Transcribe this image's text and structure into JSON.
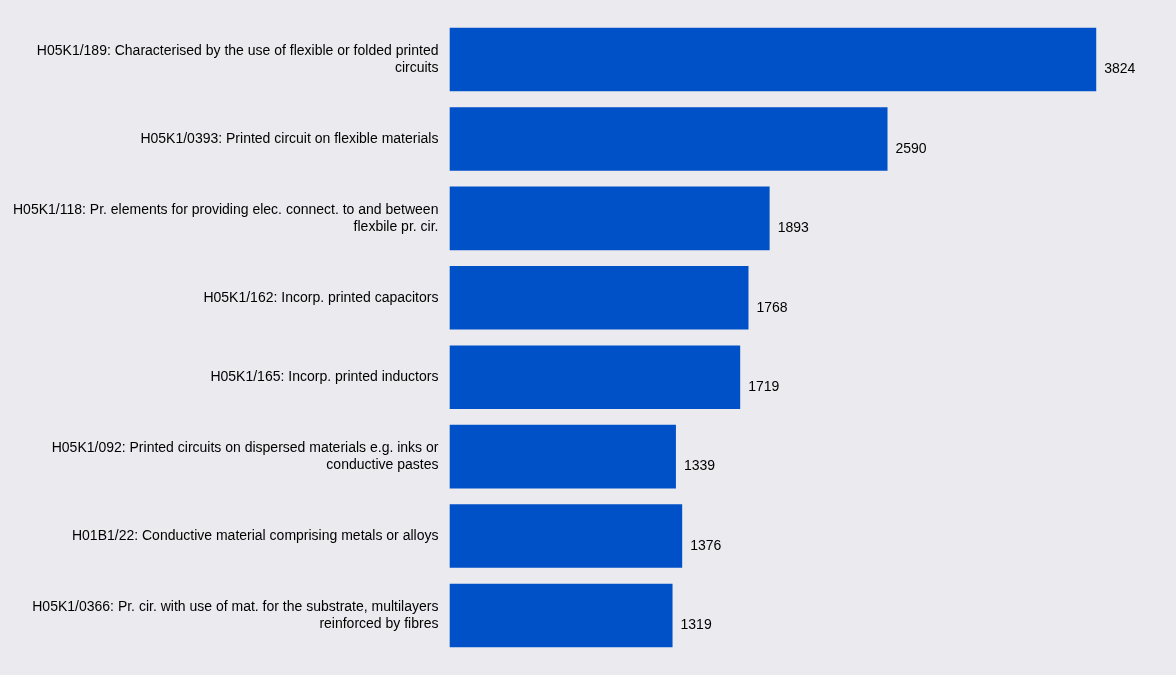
{
  "chart_data": {
    "type": "bar",
    "orientation": "horizontal",
    "categories": [
      "H05K1/189: Characterised by the use of flexible or folded printed circuits",
      "H05K1/0393: Printed circuit on flexible materials",
      "H05K1/118: Pr. elements for providing elec. connect. to and between flexbile pr. cir.",
      "H05K1/162: Incorp. printed capacitors",
      "H05K1/165: Incorp. printed inductors",
      "H05K1/092: Printed circuits on dispersed materials e.g. inks or conductive pastes",
      "H01B1/22: Conductive material comprising metals or alloys",
      "H05K1/0366: Pr. cir. with use of mat. for the substrate, multilayers reinforced by fibres"
    ],
    "values": [
      3824,
      2590,
      1893,
      1768,
      1719,
      1339,
      1376,
      1319
    ],
    "color": "#0050c8",
    "data_labels": true,
    "tick_labels": "y"
  }
}
